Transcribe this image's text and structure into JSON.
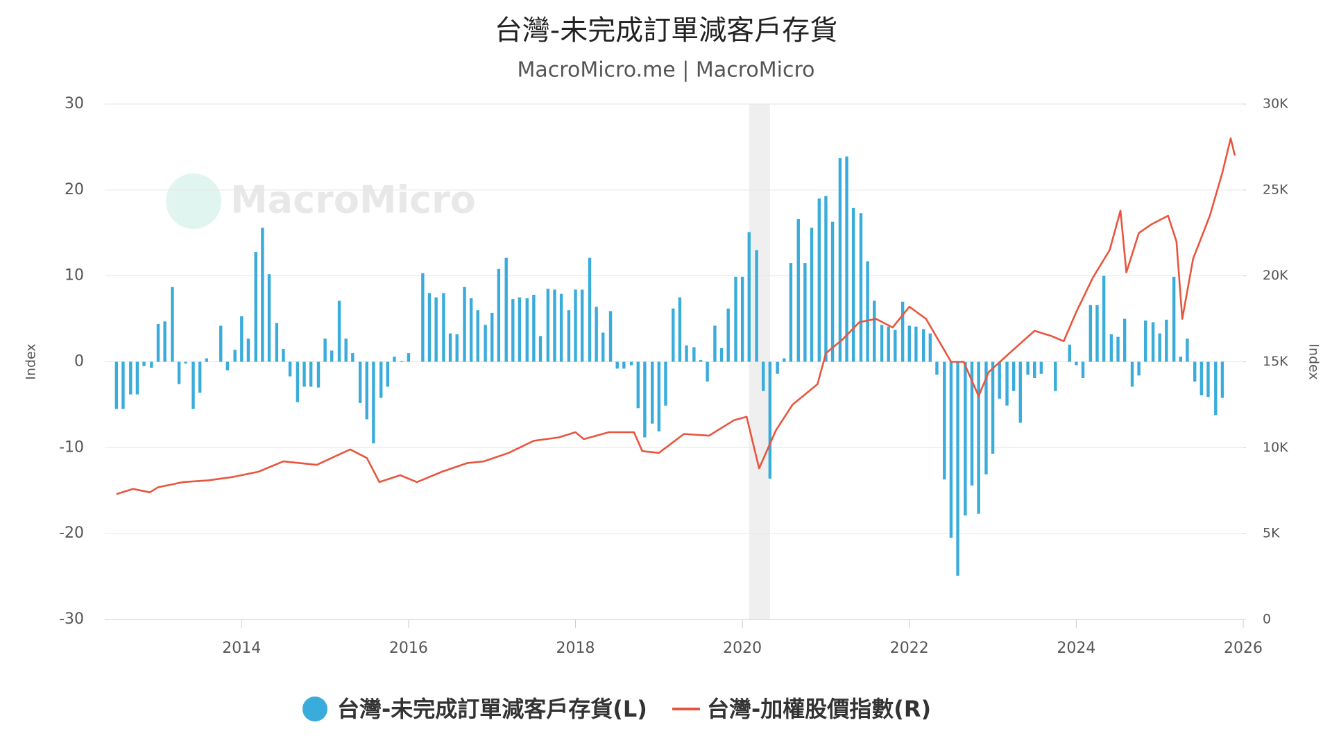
{
  "chart_data": {
    "type": "combo",
    "title": "台灣-未完成訂單減客戶存貨",
    "subtitle": "MacroMicro.me | MacroMicro",
    "watermark": "MacroMicro",
    "y_label": "Index",
    "y2_label": "Index",
    "xlim": [
      2012.36,
      2026
    ],
    "xticks": [
      2014,
      2016,
      2018,
      2020,
      2022,
      2024,
      2026
    ],
    "ylim": [
      -30,
      30
    ],
    "yticks": [
      -30,
      -20,
      -10,
      0,
      10,
      20,
      30
    ],
    "y2lim": [
      0,
      30000
    ],
    "y2ticks": [
      {
        "value": 0,
        "label": "0"
      },
      {
        "value": 5000,
        "label": "5K"
      },
      {
        "value": 10000,
        "label": "10K"
      },
      {
        "value": 15000,
        "label": "15K"
      },
      {
        "value": 20000,
        "label": "20K"
      },
      {
        "value": 25000,
        "label": "25K"
      },
      {
        "value": 30000,
        "label": "30K"
      }
    ],
    "grid": true,
    "legend": "bottom",
    "shaded_regions": [
      [
        2020.08,
        2020.33
      ]
    ],
    "series": [
      {
        "name": "台灣-未完成訂單減客戶存貨(L)",
        "type": "bar",
        "color": "#3aacdb",
        "x": [
          2012.5,
          2012.58,
          2012.67,
          2012.75,
          2012.83,
          2012.92,
          2013,
          2013.08,
          2013.17,
          2013.25,
          2013.33,
          2013.42,
          2013.5,
          2013.58,
          2013.67,
          2013.75,
          2013.83,
          2013.92,
          2014,
          2014.08,
          2014.17,
          2014.25,
          2014.33,
          2014.42,
          2014.5,
          2014.58,
          2014.67,
          2014.75,
          2014.83,
          2014.92,
          2015,
          2015.08,
          2015.17,
          2015.25,
          2015.33,
          2015.42,
          2015.5,
          2015.58,
          2015.67,
          2015.75,
          2015.83,
          2015.92,
          2016,
          2016.08,
          2016.17,
          2016.25,
          2016.33,
          2016.42,
          2016.5,
          2016.58,
          2016.67,
          2016.75,
          2016.83,
          2016.92,
          2017,
          2017.08,
          2017.17,
          2017.25,
          2017.33,
          2017.42,
          2017.5,
          2017.58,
          2017.67,
          2017.75,
          2017.83,
          2017.92,
          2018,
          2018.08,
          2018.17,
          2018.25,
          2018.33,
          2018.42,
          2018.5,
          2018.58,
          2018.67,
          2018.75,
          2018.83,
          2018.92,
          2019,
          2019.08,
          2019.17,
          2019.25,
          2019.33,
          2019.42,
          2019.5,
          2019.58,
          2019.67,
          2019.75,
          2019.83,
          2019.92,
          2020,
          2020.08,
          2020.17,
          2020.25,
          2020.33,
          2020.42,
          2020.5,
          2020.58,
          2020.67,
          2020.75,
          2020.83,
          2020.92,
          2021,
          2021.08,
          2021.17,
          2021.25,
          2021.33,
          2021.42,
          2021.5,
          2021.58,
          2021.67,
          2021.75,
          2021.83,
          2021.92,
          2022,
          2022.08,
          2022.17,
          2022.25,
          2022.33,
          2022.42,
          2022.5,
          2022.58,
          2022.67,
          2022.75,
          2022.83,
          2022.92,
          2023,
          2023.08,
          2023.17,
          2023.25,
          2023.33,
          2023.42,
          2023.5,
          2023.58,
          2023.67,
          2023.75,
          2023.83,
          2023.92,
          2024,
          2024.08,
          2024.17,
          2024.25,
          2024.33,
          2024.42,
          2024.5,
          2024.58,
          2024.67,
          2024.75,
          2024.83,
          2024.92,
          2025,
          2025.08,
          2025.17,
          2025.25,
          2025.33,
          2025.42,
          2025.5,
          2025.58,
          2025.67,
          2025.75
        ],
        "values": [
          -5.5,
          -5.5,
          -3.8,
          -3.8,
          -0.5,
          -0.7,
          4.4,
          4.7,
          8.7,
          -2.6,
          -0.2,
          -5.5,
          -3.6,
          0.4,
          0,
          4.2,
          -1.0,
          1.4,
          5.3,
          2.7,
          12.8,
          15.6,
          10.2,
          4.5,
          1.5,
          -1.7,
          -4.7,
          -2.9,
          -2.9,
          -3.0,
          2.7,
          1.3,
          7.1,
          2.7,
          1.0,
          -4.8,
          -6.7,
          -9.5,
          -4.2,
          -2.9,
          0.6,
          0.1,
          1.0,
          0,
          10.3,
          8.0,
          7.5,
          8.0,
          3.3,
          3.2,
          8.7,
          7.4,
          6.0,
          4.3,
          5.7,
          10.8,
          12.1,
          7.3,
          7.5,
          7.4,
          7.8,
          3.0,
          8.5,
          8.4,
          7.9,
          6.0,
          8.4,
          8.4,
          12.1,
          6.4,
          3.4,
          5.9,
          -0.8,
          -0.8,
          -0.4,
          -5.4,
          -8.8,
          -7.2,
          -8.1,
          -5.1,
          6.2,
          7.5,
          1.9,
          1.7,
          0.2,
          -2.3,
          4.2,
          1.6,
          6.2,
          9.9,
          9.9,
          15.1,
          13.0,
          -3.4,
          -13.6,
          -1.4,
          0.4,
          11.5,
          16.6,
          11.5,
          15.6,
          19.0,
          19.3,
          16.3,
          23.7,
          23.9,
          17.9,
          17.3,
          11.7,
          7.1,
          4.3,
          4.1,
          3.7,
          7.0,
          4.2,
          4.1,
          3.8,
          3.3,
          -1.5,
          -13.7,
          -20.5,
          -24.9,
          -17.9,
          -14.4,
          -17.7,
          -13.1,
          -10.7,
          -4.3,
          -5.1,
          -3.4,
          -7.1,
          -1.5,
          -1.9,
          -1.4,
          0.0,
          -3.4,
          0,
          2.0,
          -0.4,
          -1.9,
          6.6,
          6.6,
          10.0,
          3.2,
          2.9,
          5.0,
          -2.9,
          -1.6,
          4.8,
          4.6,
          3.3,
          4.9,
          9.9,
          0.6,
          2.7,
          -2.3,
          -3.9,
          -4.1,
          -6.2,
          -4.2
        ]
      },
      {
        "name": "台灣-加權股價指數(R)",
        "type": "line",
        "axis": "y2",
        "color": "#e8553e",
        "x": [
          2012.5,
          2012.7,
          2012.9,
          2013.0,
          2013.3,
          2013.6,
          2013.9,
          2014.2,
          2014.5,
          2014.7,
          2014.9,
          2015.3,
          2015.5,
          2015.65,
          2015.9,
          2016.1,
          2016.4,
          2016.7,
          2016.9,
          2017.2,
          2017.5,
          2017.8,
          2018.0,
          2018.1,
          2018.4,
          2018.7,
          2018.8,
          2019.0,
          2019.3,
          2019.6,
          2019.9,
          2020.05,
          2020.2,
          2020.4,
          2020.6,
          2020.9,
          2021.0,
          2021.2,
          2021.4,
          2021.6,
          2021.8,
          2022.0,
          2022.2,
          2022.5,
          2022.65,
          2022.83,
          2022.95,
          2023.2,
          2023.5,
          2023.7,
          2023.85,
          2024.0,
          2024.2,
          2024.4,
          2024.53,
          2024.6,
          2024.75,
          2024.9,
          2025.1,
          2025.2,
          2025.27,
          2025.4,
          2025.6,
          2025.75,
          2025.85,
          2025.9
        ],
        "values": [
          7300,
          7600,
          7400,
          7700,
          8000,
          8100,
          8300,
          8600,
          9200,
          9100,
          9000,
          9900,
          9400,
          8000,
          8400,
          8000,
          8600,
          9100,
          9200,
          9700,
          10400,
          10600,
          10900,
          10500,
          10900,
          10900,
          9800,
          9700,
          10800,
          10700,
          11600,
          11800,
          8800,
          11000,
          12500,
          13700,
          15500,
          16300,
          17300,
          17500,
          17000,
          18200,
          17500,
          15000,
          15000,
          13000,
          14400,
          15500,
          16800,
          16500,
          16200,
          17900,
          19900,
          21500,
          23800,
          20200,
          22500,
          23000,
          23500,
          22000,
          17500,
          21000,
          23500,
          26000,
          28000,
          27000
        ]
      }
    ]
  }
}
